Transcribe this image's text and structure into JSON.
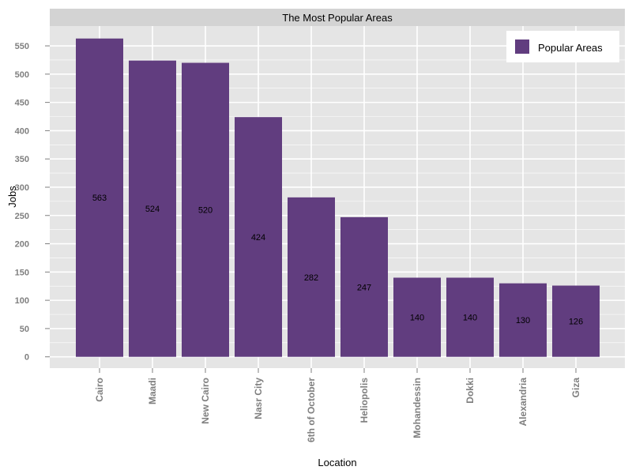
{
  "chart_data": {
    "type": "bar",
    "title": "The Most Popular Areas",
    "xlabel": "Location",
    "ylabel": "Jobs",
    "categories": [
      "Cairo",
      "Maadi",
      "New Cairo",
      "Nasr City",
      "6th of October",
      "Heliopolis",
      "Mohandessin",
      "Dokki",
      "Alexandria",
      "Giza"
    ],
    "series": [
      {
        "name": "Popular Areas",
        "values": [
          563,
          524,
          520,
          424,
          282,
          247,
          140,
          140,
          130,
          126
        ],
        "labels": [
          "563",
          "524",
          "520",
          "424",
          "282",
          "247",
          "140",
          "140",
          "130",
          "126"
        ]
      }
    ],
    "yticks": [
      0,
      50,
      100,
      150,
      200,
      250,
      300,
      350,
      400,
      450,
      500,
      550
    ],
    "ylim": [
      -20,
      585
    ],
    "grid": true,
    "legend_position": "top-right",
    "colors": {
      "bar": "#613d7f",
      "panel": "#e5e5e5",
      "strip": "#d3d3d3",
      "grid": "#ffffff",
      "tick_text": "#7f7f7f"
    }
  }
}
